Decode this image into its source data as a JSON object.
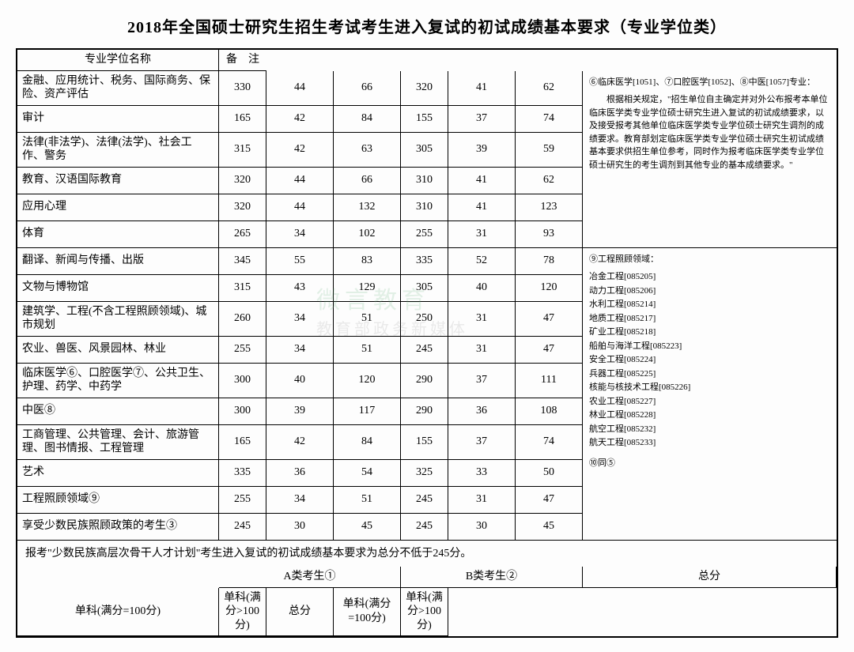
{
  "title": "2018年全国硕士研究生招生考试考生进入复试的初试成绩基本要求（专业学位类）",
  "col_name": "专业学位名称",
  "groupA": "A类考生①",
  "groupB": "B类考生②",
  "remarks_head": "备　注",
  "sub": {
    "total": "总分",
    "s1": "单科(满分=100分)",
    "s2": "单科(满分>100分)"
  },
  "rows": [
    {
      "name": "金融、应用统计、税务、国际商务、保险、资产评估",
      "a": [
        330,
        44,
        66
      ],
      "b": [
        320,
        41,
        62
      ],
      "h2": true
    },
    {
      "name": "审计",
      "a": [
        165,
        42,
        84
      ],
      "b": [
        155,
        37,
        74
      ]
    },
    {
      "name": "法律(非法学)、法律(法学)、社会工作、警务",
      "a": [
        315,
        42,
        63
      ],
      "b": [
        305,
        39,
        59
      ],
      "h2": true
    },
    {
      "name": "教育、汉语国际教育",
      "a": [
        320,
        44,
        66
      ],
      "b": [
        310,
        41,
        62
      ]
    },
    {
      "name": "应用心理",
      "a": [
        320,
        44,
        132
      ],
      "b": [
        310,
        41,
        123
      ]
    },
    {
      "name": "体育",
      "a": [
        265,
        34,
        102
      ],
      "b": [
        255,
        31,
        93
      ]
    },
    {
      "name": "翻译、新闻与传播、出版",
      "a": [
        345,
        55,
        83
      ],
      "b": [
        335,
        52,
        78
      ]
    },
    {
      "name": "文物与博物馆",
      "a": [
        315,
        43,
        129
      ],
      "b": [
        305,
        40,
        120
      ]
    },
    {
      "name": "建筑学、工程(不含工程照顾领域)、城市规划",
      "a": [
        260,
        34,
        51
      ],
      "b": [
        250,
        31,
        47
      ],
      "h2": true
    },
    {
      "name": "农业、兽医、风景园林、林业",
      "a": [
        255,
        34,
        51
      ],
      "b": [
        245,
        31,
        47
      ]
    },
    {
      "name": "临床医学⑥、口腔医学⑦、公共卫生、护理、药学、中药学",
      "a": [
        300,
        40,
        120
      ],
      "b": [
        290,
        37,
        111
      ],
      "h2": true
    },
    {
      "name": "中医⑧",
      "a": [
        300,
        39,
        117
      ],
      "b": [
        290,
        36,
        108
      ]
    },
    {
      "name": "工商管理、公共管理、会计、旅游管理、图书情报、工程管理",
      "a": [
        165,
        42,
        84
      ],
      "b": [
        155,
        37,
        74
      ],
      "h2": true
    },
    {
      "name": "艺术",
      "a": [
        335,
        36,
        54
      ],
      "b": [
        325,
        33,
        50
      ]
    },
    {
      "name": "工程照顾领域⑨",
      "a": [
        255,
        34,
        51
      ],
      "b": [
        245,
        31,
        47
      ]
    },
    {
      "name": "享受少数民族照顾政策的考生③",
      "a": [
        245,
        30,
        45
      ],
      "b": [
        245,
        30,
        45
      ]
    }
  ],
  "note_block1": {
    "line1": "⑥临床医学[1051]、⑦口腔医学[1052]、⑧中医[1057]专业：",
    "line2": "根据相关规定，\"招生单位自主确定并对外公布报考本单位临床医学类专业学位硕士研究生进入复试的初试成绩要求，以及接受报考其他单位临床医学类专业学位硕士研究生调剂的成绩要求。教育部划定临床医学类专业学位硕士研究生初试成绩基本要求供招生单位参考，同时作为报考临床医学类专业学位硕士研究生的考生调剂到其他专业的基本成绩要求。\""
  },
  "note_block2": {
    "head": "⑨工程照顾领域：",
    "items": [
      "冶金工程[085205]",
      "动力工程[085206]",
      "水利工程[085214]",
      "地质工程[085217]",
      "矿业工程[085218]",
      "船舶与海洋工程[085223]",
      "安全工程[085224]",
      "兵器工程[085225]",
      "核能与核技术工程[085226]",
      "农业工程[085227]",
      "林业工程[085228]",
      "航空工程[085232]",
      "航天工程[085233]"
    ],
    "tail": "⑩同⑤"
  },
  "footer": "报考\"少数民族高层次骨干人才计划\"考生进入复试的初试成绩基本要求为总分不低于245分。",
  "wm1": "微言教育",
  "wm2": "教育部政务新媒体",
  "colors": {
    "border": "#000000",
    "bg": "#fdfdfd",
    "text": "#000000"
  }
}
